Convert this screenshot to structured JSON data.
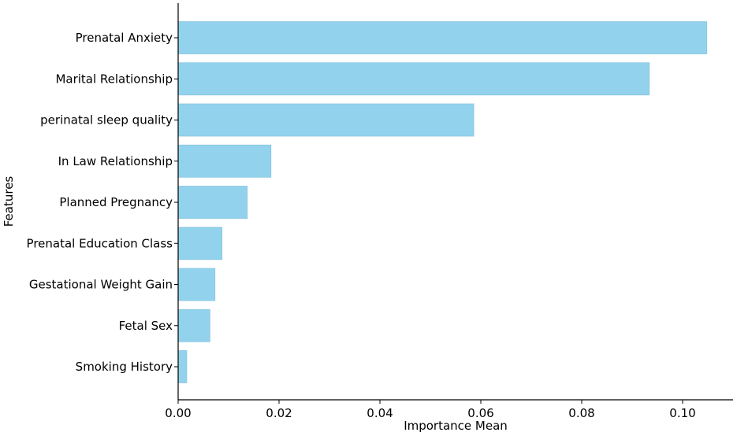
{
  "chart_data": {
    "type": "bar",
    "orientation": "horizontal",
    "title": "",
    "xlabel": "Importance Mean",
    "ylabel": "Features",
    "xlim": [
      0,
      0.11
    ],
    "x_ticks": [
      "0.00",
      "0.02",
      "0.04",
      "0.06",
      "0.08",
      "0.10"
    ],
    "x_tick_values": [
      0,
      0.02,
      0.04,
      0.06,
      0.08,
      0.1
    ],
    "categories": [
      "Prenatal Anxiety",
      "Marital Relationship",
      "perinatal sleep quality",
      "In Law Relationship",
      "Planned Pregnancy",
      "Prenatal Education Class",
      "Gestational Weight Gain",
      "Fetal Sex",
      "Smoking History"
    ],
    "values": [
      0.1048,
      0.0934,
      0.0586,
      0.0184,
      0.0137,
      0.0087,
      0.0073,
      0.0063,
      0.0017
    ],
    "grid": false,
    "legend": "none",
    "colors": {
      "bar_fill": "#93d2ec",
      "bar_edge": "#87c6e2",
      "axis": "#000000",
      "text": "#000000",
      "background": "#ffffff"
    }
  }
}
